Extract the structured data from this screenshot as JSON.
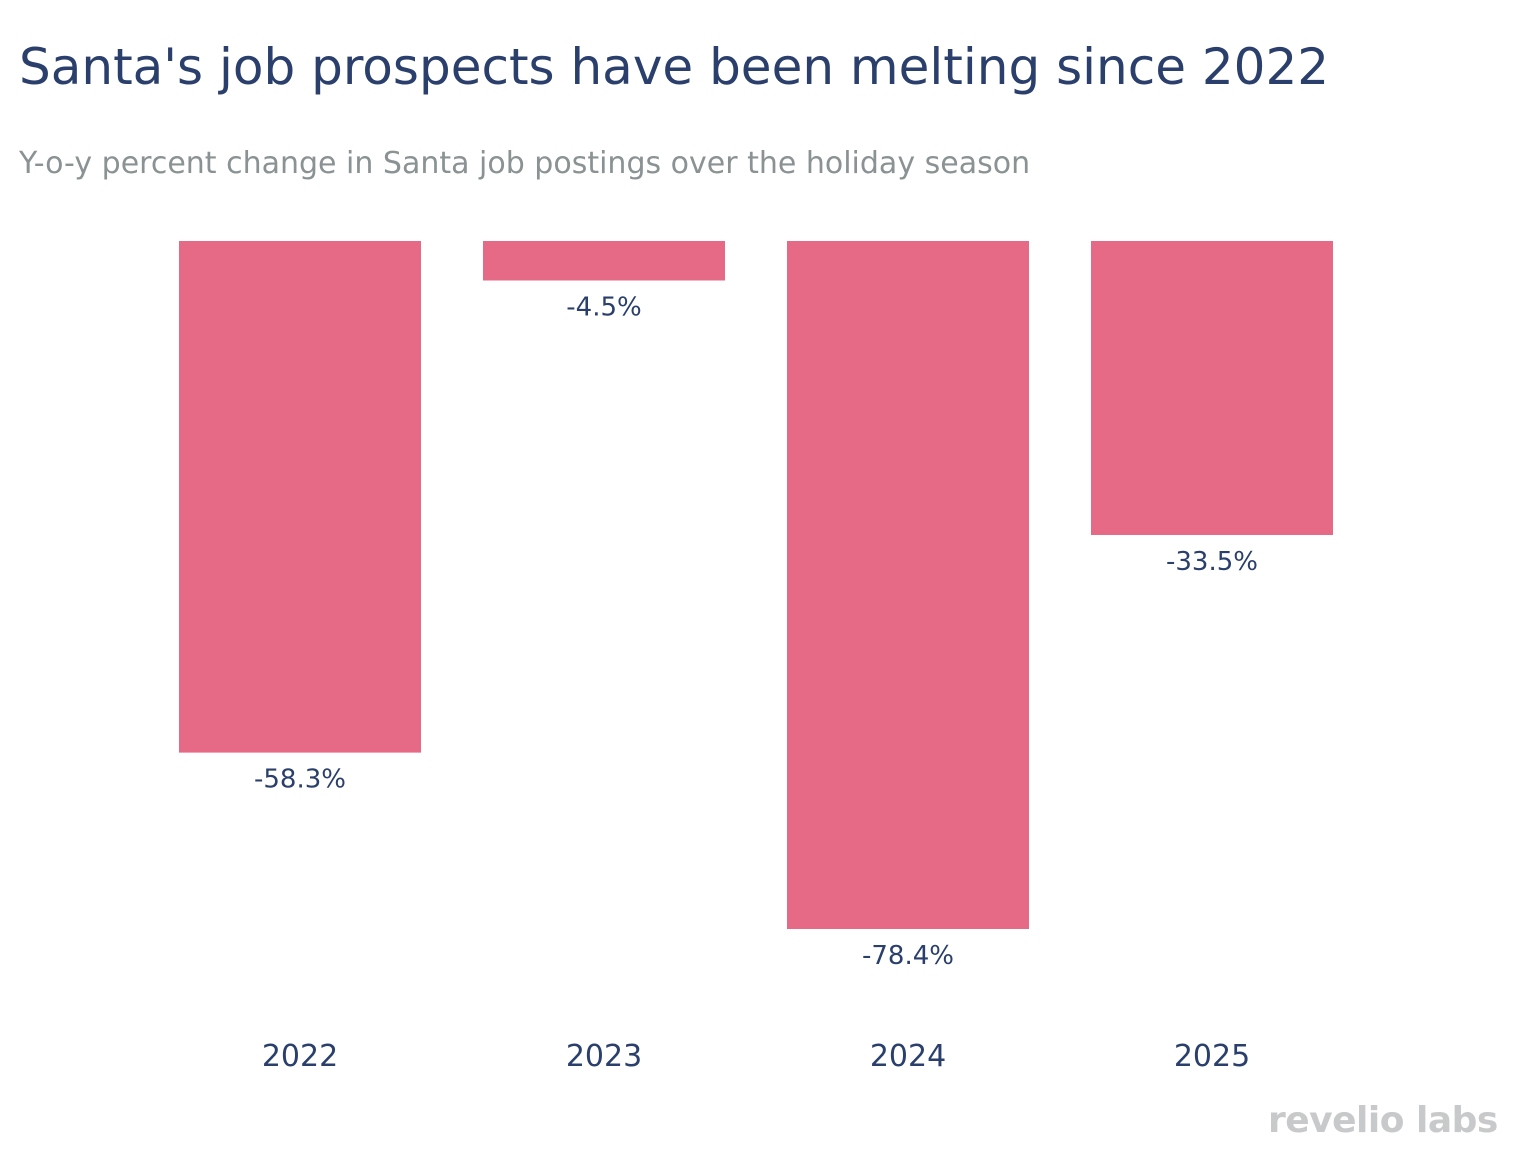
{
  "title": "Santa's job prospects have been melting since 2022",
  "subtitle": "Y-o-y percent change in Santa job postings over the holiday season",
  "logo": "revelio labs",
  "chart_data": {
    "type": "bar",
    "categories": [
      "2022",
      "2023",
      "2024",
      "2025"
    ],
    "values": [
      -58.3,
      -4.5,
      -78.4,
      -33.5
    ],
    "data_labels": [
      "-58.3%",
      "-4.5%",
      "-78.4%",
      "-33.5%"
    ],
    "title": "Santa's job prospects have been melting since 2022",
    "subtitle": "Y-o-y percent change in Santa job postings over the holiday season",
    "xlabel": "",
    "ylabel": "",
    "grid": false,
    "bar_color": "#e66a86",
    "label_color": "#2a3f6b"
  }
}
